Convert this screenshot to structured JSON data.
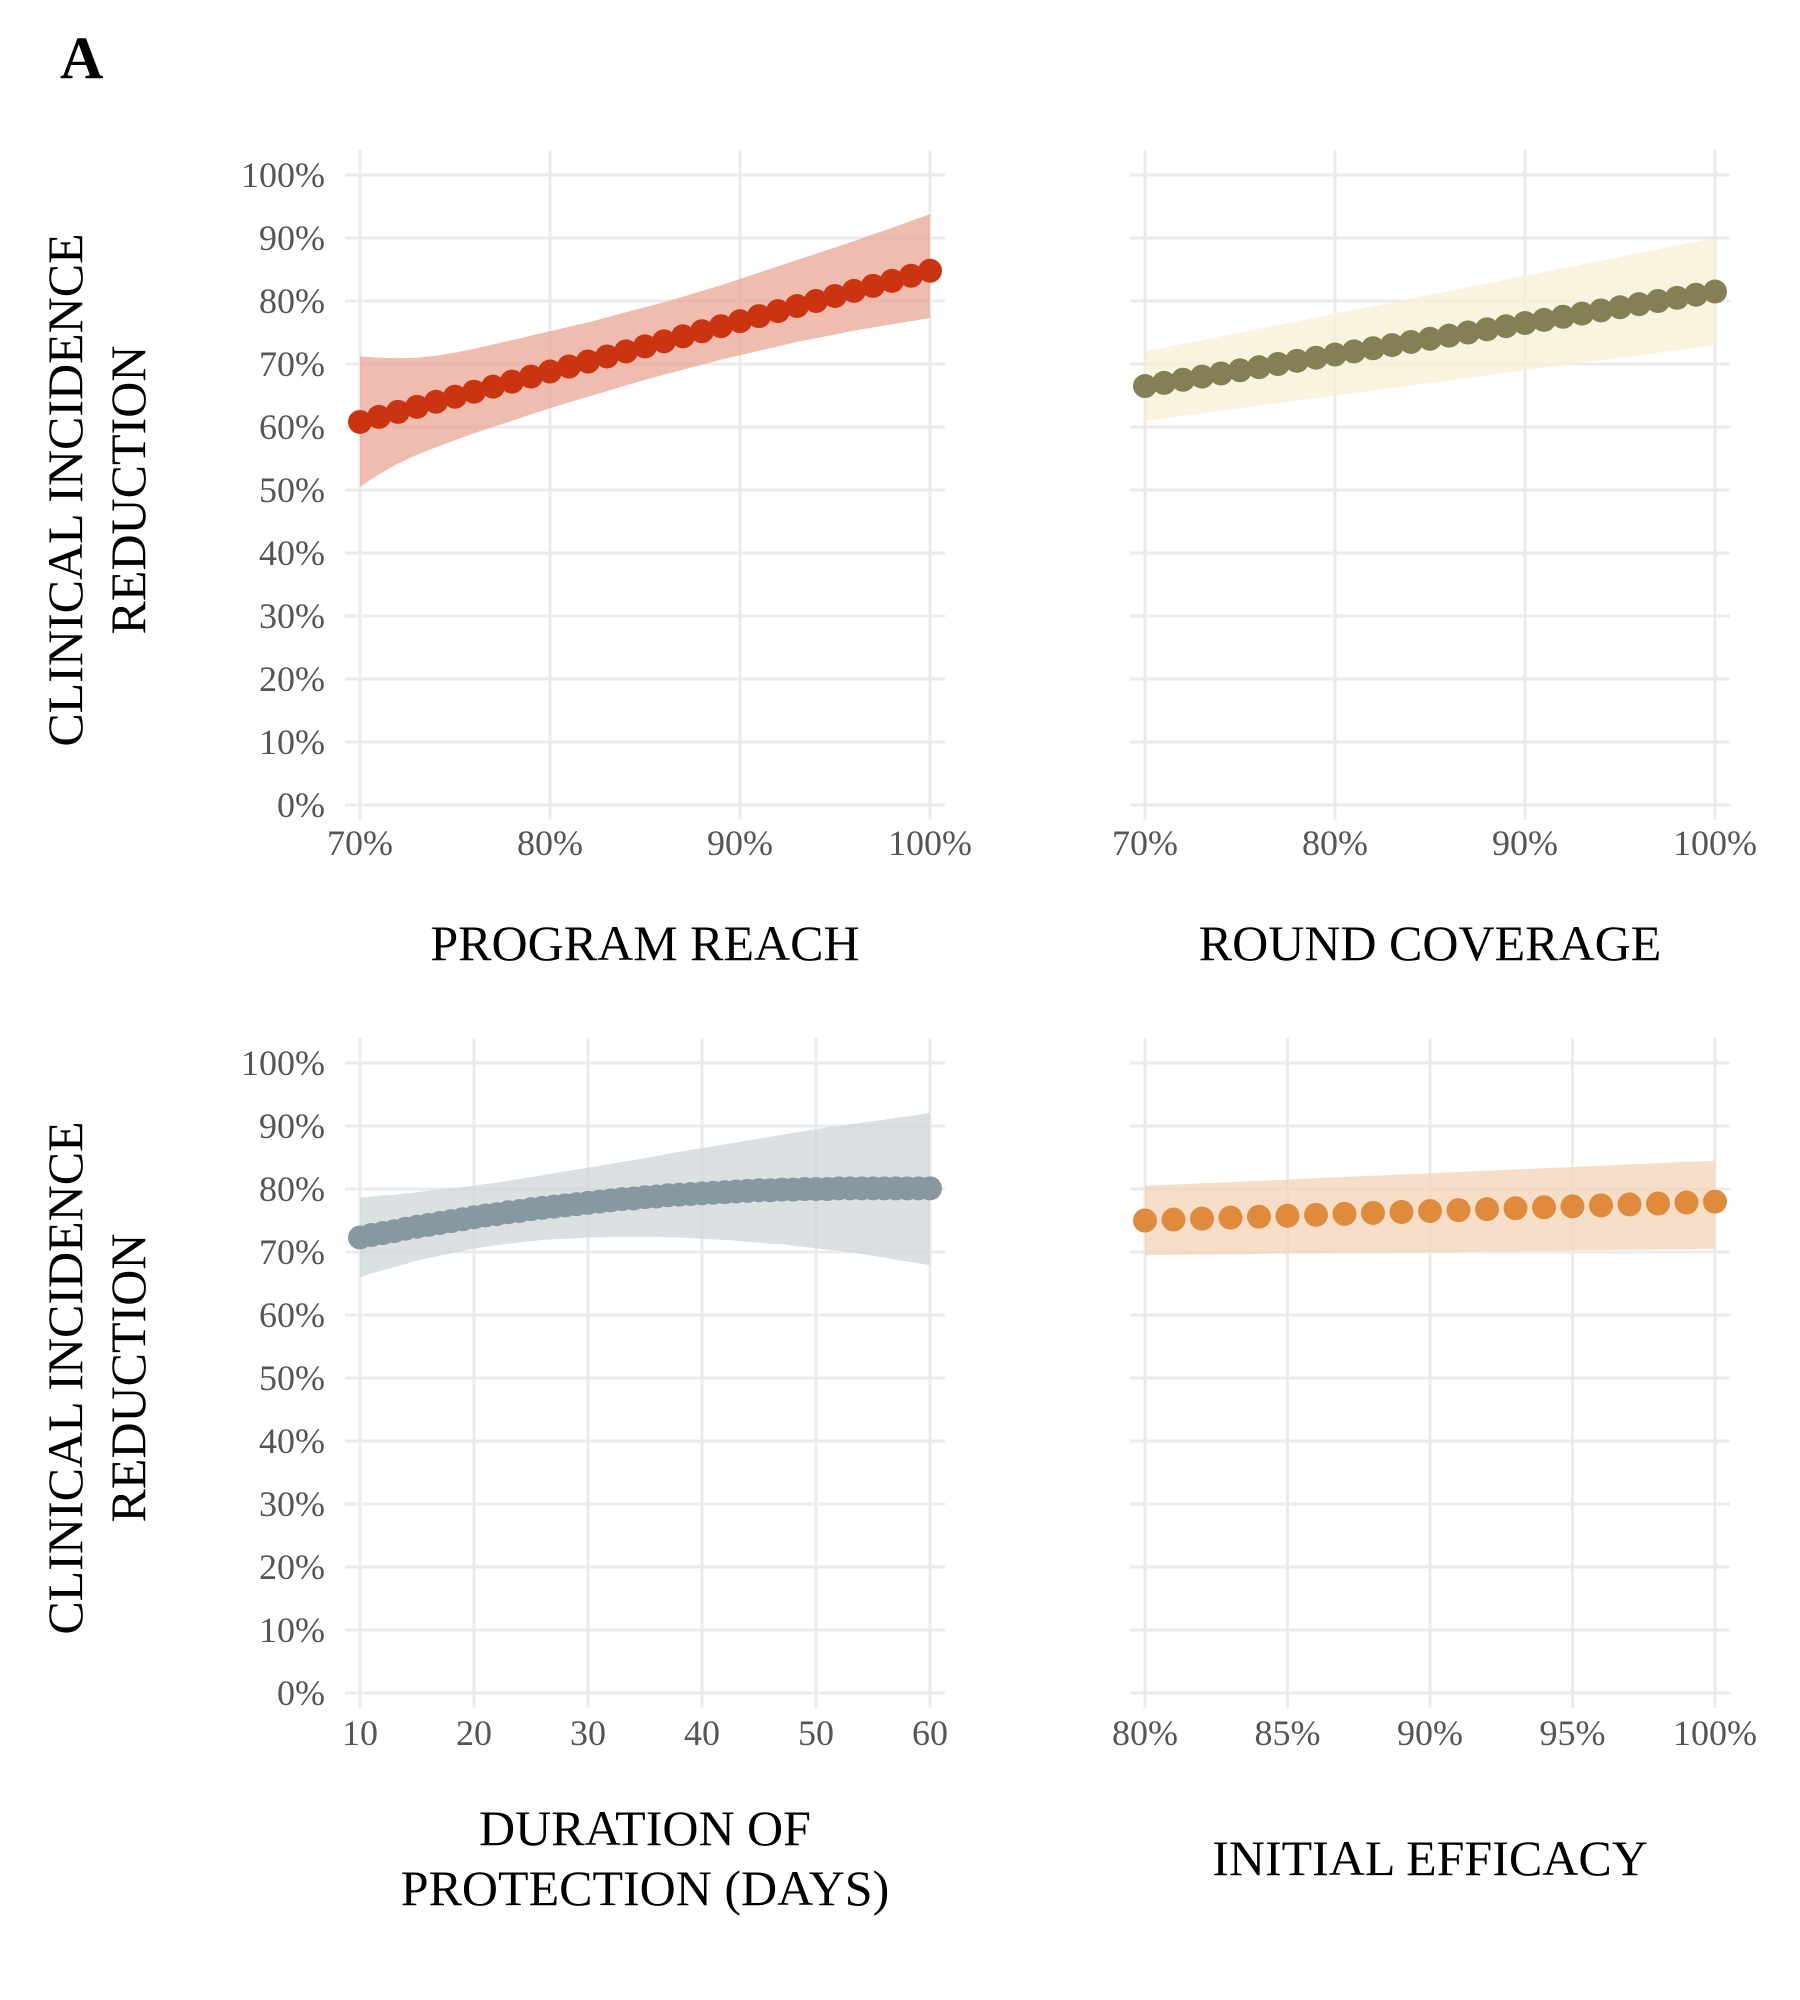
{
  "panel_letter": "A",
  "colors": {
    "grid": "#ebebeb",
    "tick_text": "#555555",
    "title_text": "#000000"
  },
  "chart_data": [
    {
      "type": "scatter",
      "id": "program-reach",
      "title": "",
      "xlabel": [
        "PROGRAM  REACH"
      ],
      "ylabel": [
        "CLINICAL  INCIDENCE",
        "REDUCTION"
      ],
      "x_range": [
        70,
        100
      ],
      "y_range": [
        0,
        100
      ],
      "x_ticks": [
        70,
        80,
        90,
        100
      ],
      "x_tick_labels": [
        "70%",
        "80%",
        "90%",
        "100%"
      ],
      "y_ticks": [
        0,
        10,
        20,
        30,
        40,
        50,
        60,
        70,
        80,
        90,
        100
      ],
      "y_tick_labels": [
        "0%",
        "10%",
        "20%",
        "30%",
        "40%",
        "50%",
        "60%",
        "70%",
        "80%",
        "90%",
        "100%"
      ],
      "point_color": "#cc3311",
      "band_color": "#e9a596",
      "grid": true,
      "x": [
        70,
        71,
        72,
        73,
        74,
        75,
        76,
        77,
        78,
        79,
        80,
        81,
        82,
        83,
        84,
        85,
        86,
        87,
        88,
        89,
        90,
        91,
        92,
        93,
        94,
        95,
        96,
        97,
        98,
        99,
        100
      ],
      "y": [
        60.8,
        61.6,
        62.4,
        63.2,
        64.0,
        64.8,
        65.6,
        66.4,
        67.2,
        68.0,
        68.8,
        69.6,
        70.4,
        71.2,
        72.0,
        72.8,
        73.6,
        74.4,
        75.2,
        76.0,
        76.8,
        77.6,
        78.4,
        79.2,
        80.0,
        80.8,
        81.6,
        82.4,
        83.2,
        84.0,
        84.8
      ],
      "lower": [
        50.5,
        52.5,
        54.2,
        55.6,
        56.8,
        57.9,
        59.0,
        60.0,
        61.0,
        62.0,
        63.0,
        63.9,
        64.8,
        65.7,
        66.6,
        67.5,
        68.3,
        69.1,
        69.9,
        70.7,
        71.4,
        72.1,
        72.8,
        73.5,
        74.1,
        74.7,
        75.3,
        75.8,
        76.3,
        76.8,
        77.3
      ],
      "upper": [
        71.2,
        71.0,
        70.9,
        71.0,
        71.3,
        71.8,
        72.4,
        73.1,
        73.8,
        74.5,
        75.2,
        75.9,
        76.6,
        77.4,
        78.2,
        79.0,
        79.8,
        80.7,
        81.6,
        82.5,
        83.5,
        84.5,
        85.5,
        86.5,
        87.5,
        88.5,
        89.5,
        90.6,
        91.6,
        92.7,
        93.8
      ]
    },
    {
      "type": "scatter",
      "id": "round-coverage",
      "title": "",
      "xlabel": [
        "ROUND  COVERAGE"
      ],
      "ylabel": [],
      "x_range": [
        70,
        100
      ],
      "y_range": [
        0,
        100
      ],
      "x_ticks": [
        70,
        80,
        90,
        100
      ],
      "x_tick_labels": [
        "70%",
        "80%",
        "90%",
        "100%"
      ],
      "y_ticks": [
        0,
        10,
        20,
        30,
        40,
        50,
        60,
        70,
        80,
        90,
        100
      ],
      "y_tick_labels": [],
      "point_color": "#857f55",
      "band_color": "#f8efd4",
      "grid": true,
      "x": [
        70,
        71,
        72,
        73,
        74,
        75,
        76,
        77,
        78,
        79,
        80,
        81,
        82,
        83,
        84,
        85,
        86,
        87,
        88,
        89,
        90,
        91,
        92,
        93,
        94,
        95,
        96,
        97,
        98,
        99,
        100
      ],
      "y": [
        66.5,
        67.0,
        67.5,
        68.0,
        68.5,
        69.0,
        69.5,
        70.0,
        70.5,
        71.0,
        71.5,
        72.0,
        72.5,
        73.0,
        73.5,
        74.0,
        74.5,
        75.0,
        75.5,
        76.0,
        76.5,
        77.0,
        77.5,
        78.0,
        78.5,
        79.0,
        79.5,
        80.0,
        80.5,
        81.0,
        81.5
      ],
      "lower": [
        61.0,
        61.4,
        61.8,
        62.2,
        62.6,
        63.0,
        63.4,
        63.8,
        64.2,
        64.6,
        65.0,
        65.4,
        65.8,
        66.2,
        66.6,
        67.0,
        67.4,
        67.8,
        68.2,
        68.6,
        69.0,
        69.4,
        69.8,
        70.2,
        70.6,
        71.0,
        71.4,
        71.8,
        72.2,
        72.6,
        73.0
      ],
      "upper": [
        72.0,
        72.6,
        73.2,
        73.8,
        74.4,
        75.0,
        75.6,
        76.2,
        76.8,
        77.4,
        78.0,
        78.6,
        79.2,
        79.8,
        80.4,
        81.0,
        81.6,
        82.2,
        82.8,
        83.4,
        84.0,
        84.6,
        85.2,
        85.8,
        86.4,
        87.0,
        87.6,
        88.2,
        88.8,
        89.4,
        90.0
      ]
    },
    {
      "type": "scatter",
      "id": "duration-of-protection",
      "title": "",
      "xlabel": [
        "DURATION  OF",
        "PROTECTION  (DAYS)"
      ],
      "ylabel": [
        "CLINICAL  INCIDENCE",
        "REDUCTION"
      ],
      "x_range": [
        10,
        60
      ],
      "y_range": [
        0,
        100
      ],
      "x_ticks": [
        10,
        20,
        30,
        40,
        50,
        60
      ],
      "x_tick_labels": [
        "10",
        "20",
        "30",
        "40",
        "50",
        "60"
      ],
      "y_ticks": [
        0,
        10,
        20,
        30,
        40,
        50,
        60,
        70,
        80,
        90,
        100
      ],
      "y_tick_labels": [
        "0%",
        "10%",
        "20%",
        "30%",
        "40%",
        "50%",
        "60%",
        "70%",
        "80%",
        "90%",
        "100%"
      ],
      "point_color": "#8898a0",
      "band_color": "#cfd6da",
      "grid": true,
      "x": [
        10,
        11,
        12,
        13,
        14,
        15,
        16,
        17,
        18,
        19,
        20,
        21,
        22,
        23,
        24,
        25,
        26,
        27,
        28,
        29,
        30,
        31,
        32,
        33,
        34,
        35,
        36,
        37,
        38,
        39,
        40,
        41,
        42,
        43,
        44,
        45,
        46,
        47,
        48,
        49,
        50,
        51,
        52,
        53,
        54,
        55,
        56,
        57,
        58,
        59,
        60
      ],
      "y": [
        72.3,
        72.7,
        73.0,
        73.3,
        73.7,
        74.0,
        74.3,
        74.6,
        74.9,
        75.2,
        75.5,
        75.8,
        76.0,
        76.3,
        76.5,
        76.8,
        77.0,
        77.2,
        77.4,
        77.6,
        77.8,
        78.0,
        78.2,
        78.4,
        78.5,
        78.7,
        78.8,
        79.0,
        79.1,
        79.2,
        79.3,
        79.4,
        79.5,
        79.6,
        79.7,
        79.8,
        79.8,
        79.9,
        79.9,
        80.0,
        80.0,
        80.0,
        80.1,
        80.1,
        80.1,
        80.1,
        80.1,
        80.1,
        80.1,
        80.1,
        80.1
      ],
      "lower": [
        66.0,
        66.6,
        67.1,
        67.6,
        68.1,
        68.6,
        69.0,
        69.4,
        69.8,
        70.2,
        70.5,
        70.8,
        71.1,
        71.3,
        71.5,
        71.7,
        71.9,
        72.0,
        72.1,
        72.2,
        72.3,
        72.3,
        72.4,
        72.4,
        72.4,
        72.4,
        72.4,
        72.3,
        72.3,
        72.2,
        72.1,
        72.0,
        71.9,
        71.8,
        71.6,
        71.5,
        71.3,
        71.2,
        71.0,
        70.8,
        70.6,
        70.4,
        70.2,
        69.9,
        69.7,
        69.4,
        69.1,
        68.8,
        68.5,
        68.2,
        67.9
      ],
      "upper": [
        78.6,
        78.8,
        79.0,
        79.1,
        79.3,
        79.5,
        79.7,
        79.9,
        80.1,
        80.3,
        80.5,
        80.8,
        81.0,
        81.3,
        81.6,
        81.9,
        82.2,
        82.5,
        82.8,
        83.1,
        83.4,
        83.7,
        84.0,
        84.3,
        84.6,
        84.9,
        85.2,
        85.6,
        85.9,
        86.2,
        86.5,
        86.8,
        87.1,
        87.4,
        87.7,
        88.0,
        88.3,
        88.6,
        88.9,
        89.2,
        89.5,
        89.8,
        90.0,
        90.3,
        90.5,
        90.8,
        91.0,
        91.3,
        91.5,
        91.8,
        92.1
      ]
    },
    {
      "type": "scatter",
      "id": "initial-efficacy",
      "title": "",
      "xlabel": [
        "INITIAL  EFFICACY"
      ],
      "ylabel": [],
      "x_range": [
        80,
        100
      ],
      "y_range": [
        0,
        100
      ],
      "x_ticks": [
        80,
        85,
        90,
        95,
        100
      ],
      "x_tick_labels": [
        "80%",
        "85%",
        "90%",
        "95%",
        "100%"
      ],
      "y_ticks": [
        0,
        10,
        20,
        30,
        40,
        50,
        60,
        70,
        80,
        90,
        100
      ],
      "y_tick_labels": [],
      "point_color": "#e08a3c",
      "band_color": "#f4d3b6",
      "grid": true,
      "x": [
        80,
        81,
        82,
        83,
        84,
        85,
        86,
        87,
        88,
        89,
        90,
        91,
        92,
        93,
        94,
        95,
        96,
        97,
        98,
        99,
        100
      ],
      "y": [
        75.0,
        75.15,
        75.3,
        75.45,
        75.6,
        75.75,
        75.9,
        76.05,
        76.2,
        76.35,
        76.5,
        76.65,
        76.8,
        76.95,
        77.1,
        77.25,
        77.4,
        77.55,
        77.7,
        77.85,
        78.0
      ],
      "lower": [
        69.5,
        69.55,
        69.6,
        69.65,
        69.7,
        69.75,
        69.8,
        69.85,
        69.9,
        69.95,
        70.0,
        70.05,
        70.1,
        70.15,
        70.2,
        70.25,
        70.3,
        70.35,
        70.4,
        70.45,
        70.5
      ],
      "upper": [
        80.5,
        80.7,
        80.9,
        81.1,
        81.3,
        81.5,
        81.7,
        81.9,
        82.1,
        82.3,
        82.5,
        82.7,
        82.9,
        83.1,
        83.3,
        83.5,
        83.7,
        83.9,
        84.1,
        84.3,
        84.5
      ]
    }
  ]
}
